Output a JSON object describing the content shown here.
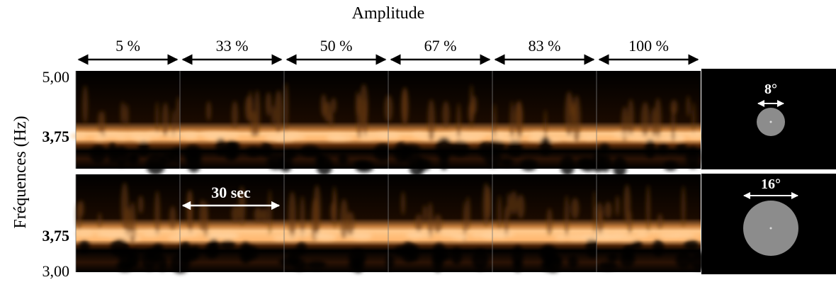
{
  "header": {
    "title": "Amplitude"
  },
  "columns": [
    "5 %",
    "33 %",
    "50 %",
    "67 %",
    "83 %",
    "100 %"
  ],
  "y_axis": {
    "label": "Fréquences (Hz)",
    "top_ticks": [
      "5,00",
      "3,75"
    ],
    "bottom_ticks": [
      "3,75",
      "3,00"
    ]
  },
  "annotations": {
    "duration": "30 sec",
    "small_stimulus": "8°",
    "large_stimulus": "16°"
  }
}
